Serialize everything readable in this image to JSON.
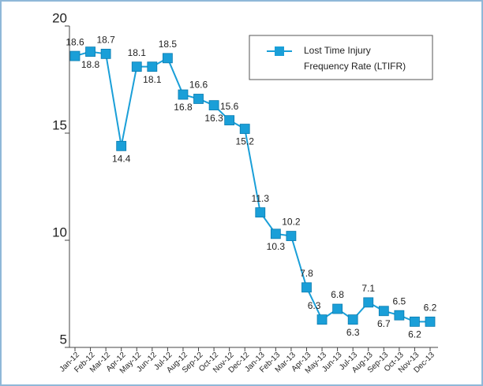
{
  "chart_data": {
    "type": "line",
    "categories": [
      "Jan-12",
      "Feb-12",
      "Mar-12",
      "Apr-12",
      "May-12",
      "Jun-12",
      "Jul-12",
      "Aug-12",
      "Sep-12",
      "Oct-12",
      "Nov-12",
      "Dec-12",
      "Jan-13",
      "Feb-13",
      "Mar-13",
      "Apr-13",
      "May-13",
      "Jun-13",
      "Jul-13",
      "Aug-13",
      "Sep-13",
      "Oct-13",
      "Nov-13",
      "Dec-13"
    ],
    "series": [
      {
        "name": "Lost Time Injury\nFrequency Rate (LTIFR)",
        "color": "#1a9fd8",
        "values": [
          18.6,
          18.8,
          18.7,
          14.4,
          18.1,
          18.1,
          18.5,
          16.8,
          16.6,
          16.3,
          15.6,
          15.2,
          11.3,
          10.3,
          10.2,
          7.8,
          6.3,
          6.8,
          6.3,
          7.1,
          6.7,
          6.5,
          6.2,
          6.2
        ]
      }
    ],
    "ylim": [
      5,
      20
    ],
    "yticks": [
      5,
      10,
      15,
      20
    ],
    "legend": "upper right"
  }
}
